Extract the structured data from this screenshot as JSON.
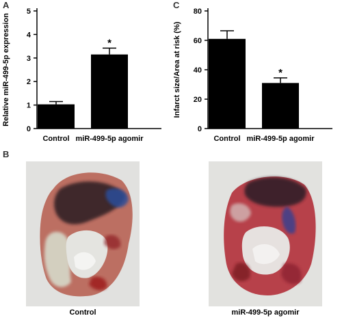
{
  "panels": {
    "a": "A",
    "b": "B",
    "c": "C"
  },
  "chart_data": [
    {
      "type": "bar",
      "categories": [
        "Control",
        "miR-499-5p agomir"
      ],
      "values": [
        1.03,
        3.15
      ],
      "errors": [
        0.12,
        0.27
      ],
      "significance": [
        "",
        "*"
      ],
      "ylabel": "Relative miR-499-5p expression",
      "xlabel": "",
      "title": "",
      "ylim": [
        0,
        5
      ],
      "yticks": [
        0,
        1,
        2,
        3,
        4,
        5
      ],
      "bar_color": "#000000"
    },
    {
      "type": "bar",
      "categories": [
        "Control",
        "miR-499-5p agomir"
      ],
      "values": [
        61,
        31
      ],
      "errors": [
        5.5,
        3.5
      ],
      "significance": [
        "",
        "*"
      ],
      "ylabel": "Infarct size/Area at risk (%)",
      "xlabel": "",
      "title": "",
      "ylim": [
        0,
        80
      ],
      "yticks": [
        0,
        20,
        40,
        60,
        80
      ],
      "bar_color": "#000000"
    }
  ],
  "photos": [
    {
      "label": "Control"
    },
    {
      "label": "miR-499-5p agomir"
    }
  ]
}
